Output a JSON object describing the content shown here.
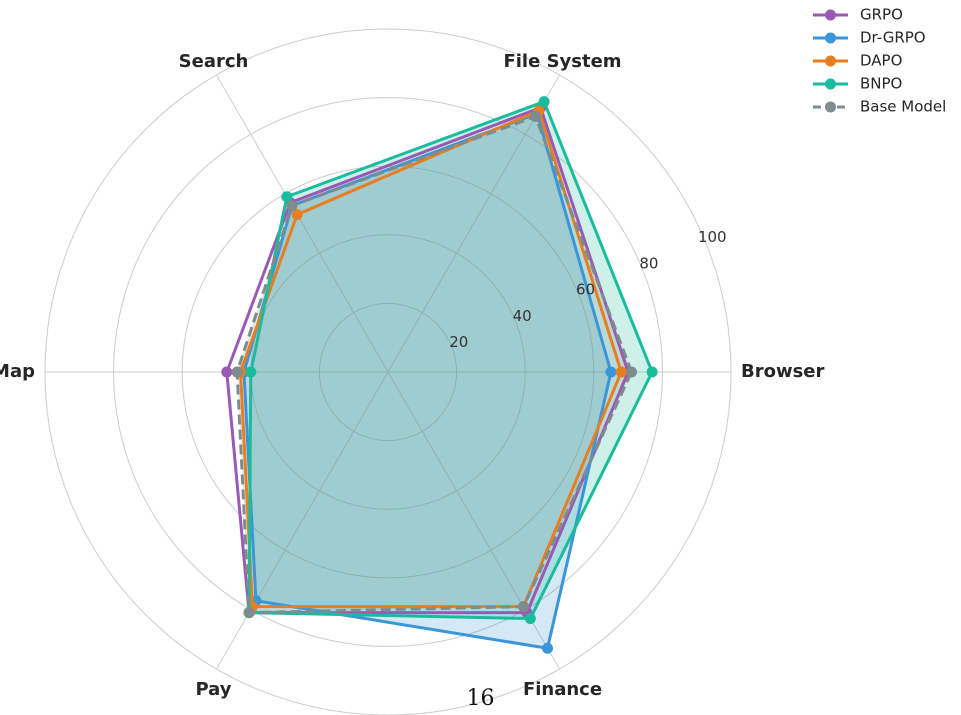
{
  "chart_data": {
    "type": "radar",
    "axes": [
      "Browser",
      "File System",
      "Search",
      "Map",
      "Pay",
      "Finance"
    ],
    "radial_ticks": [
      20,
      40,
      60,
      80,
      100
    ],
    "rlim": [
      0,
      100
    ],
    "grid": true,
    "legend_position": "top-right",
    "series": [
      {
        "name": "GRPO",
        "color": "#9b59b6",
        "dashed": false,
        "fill": false,
        "values": [
          70,
          89,
          57,
          47,
          81,
          81
        ]
      },
      {
        "name": "Dr-GRPO",
        "color": "#3a96d8",
        "dashed": false,
        "fill": true,
        "values": [
          65,
          87,
          56,
          42,
          77,
          93
        ]
      },
      {
        "name": "DAPO",
        "color": "#e67e22",
        "dashed": false,
        "fill": false,
        "values": [
          68,
          88,
          53,
          43,
          79,
          79
        ]
      },
      {
        "name": "BNPO",
        "color": "#1abc9c",
        "dashed": false,
        "fill": true,
        "values": [
          77,
          91,
          59,
          40,
          81,
          83
        ]
      },
      {
        "name": "Base Model",
        "color": "#7f8c8d",
        "dashed": true,
        "fill": true,
        "values": [
          71,
          86,
          56,
          44,
          81,
          79
        ]
      }
    ]
  },
  "page_number": "16"
}
